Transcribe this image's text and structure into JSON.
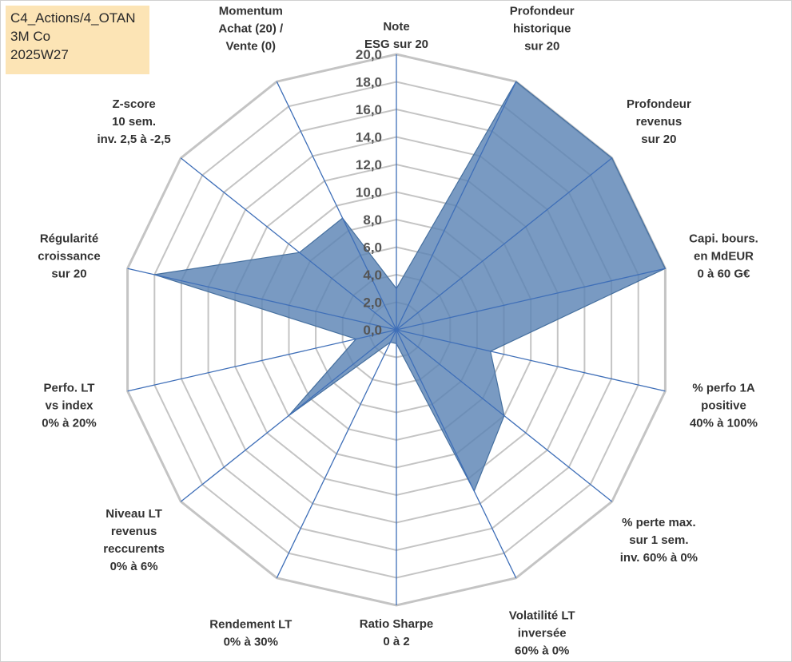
{
  "info": {
    "line1": "C4_Actions/4_OTAN",
    "line2": "3M Co",
    "line3": "2025W27"
  },
  "chart_data": {
    "type": "radar",
    "rmin": 0,
    "rmax": 20,
    "tick_step": 2,
    "tick_labels": [
      "0,0",
      "2,0",
      "4,0",
      "6,0",
      "8,0",
      "10,0",
      "12,0",
      "14,0",
      "16,0",
      "18,0",
      "20,0"
    ],
    "colors": {
      "fill": "#5b84b5",
      "stroke": "#46709f",
      "axis": "#3f6fb8",
      "grid": "#c4c4c4"
    },
    "axes": [
      {
        "label": [
          "Note",
          "ESG sur 20"
        ],
        "value": 3.0
      },
      {
        "label": [
          "Profondeur",
          "historique",
          "sur 20"
        ],
        "value": 20.0
      },
      {
        "label": [
          "Profondeur",
          "revenus",
          "sur 20"
        ],
        "value": 20.0
      },
      {
        "label": [
          "Capi. bours.",
          "en MdEUR",
          "0 à 60 G€"
        ],
        "value": 20.0
      },
      {
        "label": [
          "% perfo 1A",
          "positive",
          "40% à 100%"
        ],
        "value": 7.0
      },
      {
        "label": [
          "% perte max.",
          "sur 1 sem.",
          "inv. 60% à 0%"
        ],
        "value": 10.0
      },
      {
        "label": [
          "Volatilité LT",
          "inversée",
          "60% à 0%"
        ],
        "value": 13.0
      },
      {
        "label": [
          "Ratio Sharpe",
          "0 à 2"
        ],
        "value": 1.0
      },
      {
        "label": [
          "Rendement LT",
          "0% à 30%"
        ],
        "value": 1.0
      },
      {
        "label": [
          "Niveau LT",
          "revenus",
          "reccurents",
          "0% à 6%"
        ],
        "value": 10.0
      },
      {
        "label": [
          "Perfo. LT",
          "vs index",
          "0% à 20%"
        ],
        "value": 3.0
      },
      {
        "label": [
          "Régularité",
          "croissance",
          "sur 20"
        ],
        "value": 18.0
      },
      {
        "label": [
          "Z-score",
          "10 sem.",
          "inv. 2,5 à -2,5"
        ],
        "value": 9.0
      },
      {
        "label": [
          "Momentum",
          "Achat (20) /",
          "Vente (0)"
        ],
        "value": 9.0
      }
    ]
  }
}
